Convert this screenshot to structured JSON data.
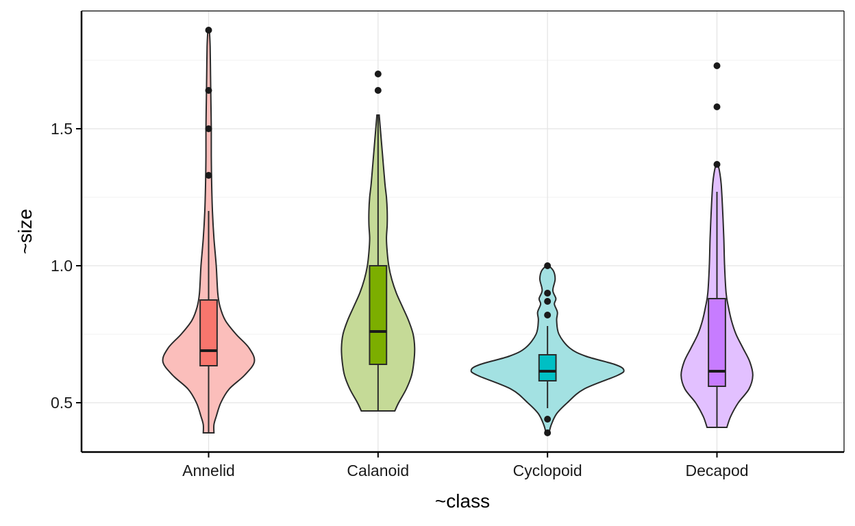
{
  "chart_data": {
    "type": "violin",
    "xlabel": "~class",
    "ylabel": "~size",
    "ylim": [
      0.32,
      1.93
    ],
    "yticks": [
      0.5,
      1.0,
      1.5
    ],
    "ytick_labels": [
      "0.5",
      "1.0",
      "1.5"
    ],
    "grid": true,
    "categories": [
      "Annelid",
      "Calanoid",
      "Cyclopoid",
      "Decapod"
    ],
    "series": [
      {
        "category": "Annelid",
        "fill": "#f8766d",
        "violin_fill": "#fbbebb",
        "density": [
          [
            0.39,
            0.07
          ],
          [
            0.42,
            0.07
          ],
          [
            0.45,
            0.1
          ],
          [
            0.5,
            0.16
          ],
          [
            0.55,
            0.27
          ],
          [
            0.6,
            0.47
          ],
          [
            0.65,
            0.6
          ],
          [
            0.7,
            0.53
          ],
          [
            0.75,
            0.36
          ],
          [
            0.8,
            0.22
          ],
          [
            0.85,
            0.15
          ],
          [
            0.9,
            0.12
          ],
          [
            1.0,
            0.1
          ],
          [
            1.1,
            0.07
          ],
          [
            1.2,
            0.05
          ],
          [
            1.3,
            0.04
          ],
          [
            1.4,
            0.035
          ],
          [
            1.5,
            0.035
          ],
          [
            1.6,
            0.03
          ],
          [
            1.7,
            0.025
          ],
          [
            1.8,
            0.02
          ],
          [
            1.86,
            0.01
          ]
        ],
        "box": {
          "q1": 0.635,
          "median": 0.69,
          "q3": 0.875,
          "whisker_low": 0.39,
          "whisker_high": 1.2
        },
        "outliers": [
          1.33,
          1.5,
          1.64,
          1.86
        ]
      },
      {
        "category": "Calanoid",
        "fill": "#7cae00",
        "violin_fill": "#c5da97",
        "density": [
          [
            0.47,
            0.22
          ],
          [
            0.5,
            0.27
          ],
          [
            0.55,
            0.37
          ],
          [
            0.6,
            0.44
          ],
          [
            0.65,
            0.47
          ],
          [
            0.7,
            0.48
          ],
          [
            0.75,
            0.46
          ],
          [
            0.8,
            0.4
          ],
          [
            0.85,
            0.32
          ],
          [
            0.9,
            0.24
          ],
          [
            0.95,
            0.18
          ],
          [
            1.0,
            0.14
          ],
          [
            1.05,
            0.12
          ],
          [
            1.1,
            0.11
          ],
          [
            1.15,
            0.12
          ],
          [
            1.2,
            0.12
          ],
          [
            1.25,
            0.11
          ],
          [
            1.3,
            0.09
          ],
          [
            1.4,
            0.06
          ],
          [
            1.5,
            0.03
          ],
          [
            1.55,
            0.015
          ]
        ],
        "box": {
          "q1": 0.64,
          "median": 0.76,
          "q3": 1.0,
          "whisker_low": 0.47,
          "whisker_high": 1.55
        },
        "outliers": [
          1.64,
          1.7
        ]
      },
      {
        "category": "Cyclopoid",
        "fill": "#00bfc4",
        "violin_fill": "#a3e1e2",
        "density": [
          [
            0.39,
            0.02
          ],
          [
            0.42,
            0.05
          ],
          [
            0.46,
            0.12
          ],
          [
            0.5,
            0.26
          ],
          [
            0.55,
            0.48
          ],
          [
            0.6,
            0.92
          ],
          [
            0.62,
            1.0
          ],
          [
            0.64,
            0.88
          ],
          [
            0.67,
            0.5
          ],
          [
            0.7,
            0.29
          ],
          [
            0.75,
            0.15
          ],
          [
            0.8,
            0.12
          ],
          [
            0.83,
            0.13
          ],
          [
            0.86,
            0.09
          ],
          [
            0.88,
            0.11
          ],
          [
            0.91,
            0.07
          ],
          [
            0.95,
            0.1
          ],
          [
            0.98,
            0.08
          ],
          [
            1.0,
            0.02
          ]
        ],
        "box": {
          "q1": 0.58,
          "median": 0.615,
          "q3": 0.675,
          "whisker_low": 0.48,
          "whisker_high": 0.78
        },
        "outliers": [
          0.39,
          0.44,
          0.82,
          0.87,
          0.9,
          1.0
        ]
      },
      {
        "category": "Decapod",
        "fill": "#c77cff",
        "violin_fill": "#e2c0ff",
        "density": [
          [
            0.41,
            0.13
          ],
          [
            0.45,
            0.18
          ],
          [
            0.5,
            0.28
          ],
          [
            0.55,
            0.42
          ],
          [
            0.6,
            0.47
          ],
          [
            0.65,
            0.43
          ],
          [
            0.7,
            0.34
          ],
          [
            0.75,
            0.25
          ],
          [
            0.8,
            0.19
          ],
          [
            0.85,
            0.15
          ],
          [
            0.9,
            0.12
          ],
          [
            1.0,
            0.1
          ],
          [
            1.1,
            0.09
          ],
          [
            1.2,
            0.075
          ],
          [
            1.3,
            0.055
          ],
          [
            1.35,
            0.03
          ],
          [
            1.37,
            0.01
          ]
        ],
        "box": {
          "q1": 0.56,
          "median": 0.615,
          "q3": 0.88,
          "whisker_low": 0.41,
          "whisker_high": 1.27
        },
        "outliers": [
          1.37,
          1.58,
          1.73
        ]
      }
    ]
  }
}
